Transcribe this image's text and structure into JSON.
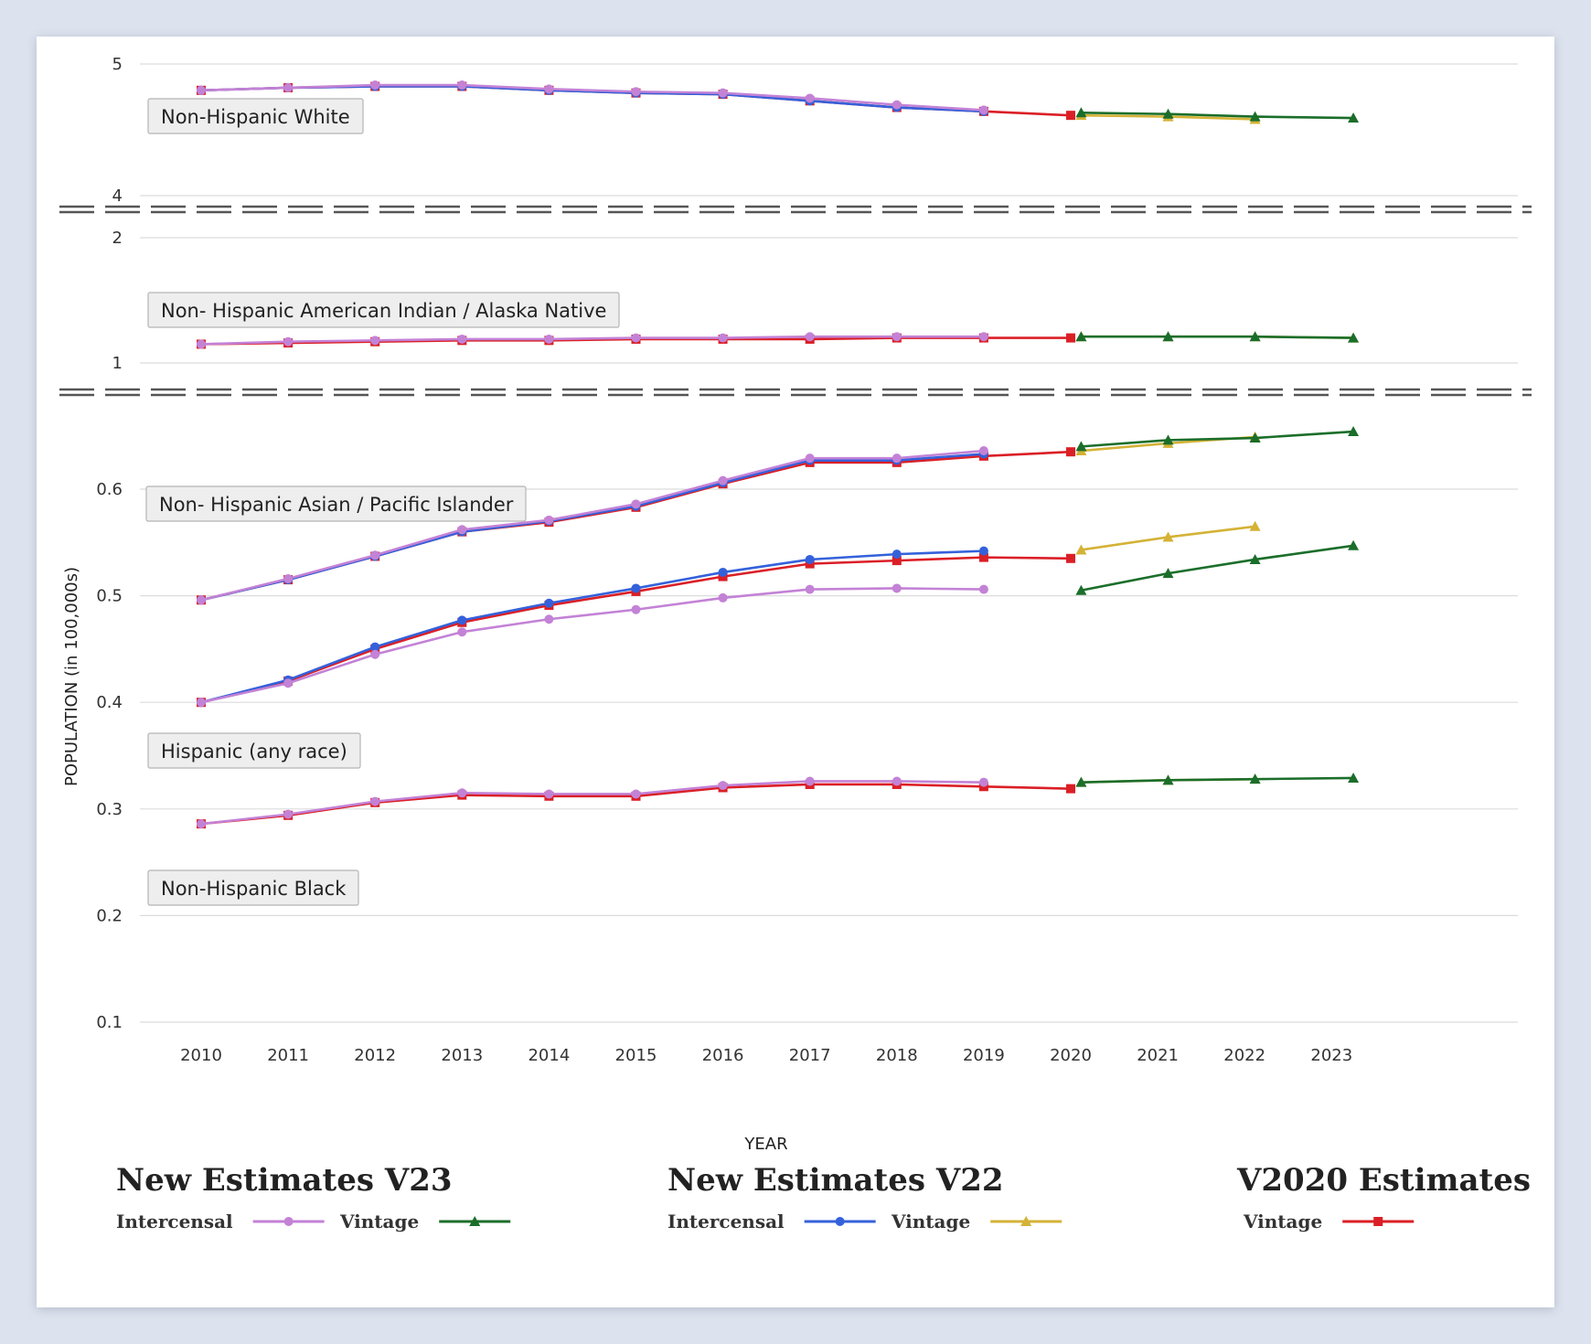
{
  "chart_data": {
    "type": "line",
    "ylabel": "POPULATION (in 100,000s)",
    "xlabel": "YEAR",
    "grid": true,
    "x_ticks": [
      2010,
      2011,
      2012,
      2013,
      2014,
      2015,
      2016,
      2017,
      2018,
      2019,
      2020,
      2021,
      2022,
      2023
    ],
    "axis_breaks": true,
    "y_segments": [
      {
        "ylim": [
          4,
          5
        ],
        "ticks": [
          4,
          5
        ]
      },
      {
        "ylim": [
          1,
          2
        ],
        "ticks": [
          1,
          2
        ]
      },
      {
        "ylim": [
          0.1,
          0.7
        ],
        "ticks": [
          0.1,
          0.2,
          0.3,
          0.4,
          0.5,
          0.6
        ]
      }
    ],
    "group_labels": [
      "Non-Hispanic White",
      "Non- Hispanic American Indian / Alaska Native",
      "Non- Hispanic Asian / Pacific Islander",
      "Hispanic (any race)",
      "Non-Hispanic Black"
    ],
    "legend": [
      {
        "title": "New Estimates V23",
        "entries": [
          {
            "label": "Intercensal",
            "series": "v23_intercensal"
          },
          {
            "label": "Vintage",
            "series": "v23_vintage"
          }
        ]
      },
      {
        "title": "New Estimates V22",
        "entries": [
          {
            "label": "Intercensal",
            "series": "v22_intercensal"
          },
          {
            "label": "Vintage",
            "series": "v22_vintage"
          }
        ]
      },
      {
        "title": "V2020 Estimates",
        "entries": [
          {
            "label": "Vintage",
            "series": "v2020_vintage"
          }
        ]
      }
    ],
    "series_styles": {
      "v23_intercensal": {
        "color": "#c382d6",
        "marker": "circle"
      },
      "v23_vintage": {
        "color": "#1b6e2a",
        "marker": "triangle"
      },
      "v22_intercensal": {
        "color": "#3461db",
        "marker": "circle"
      },
      "v22_vintage": {
        "color": "#d4b236",
        "marker": "triangle"
      },
      "v2020_vintage": {
        "color": "#db1f26",
        "marker": "square"
      }
    },
    "series": [
      {
        "group": "Non-Hispanic White",
        "style": "v2020_vintage",
        "x": [
          2010,
          2011,
          2012,
          2013,
          2014,
          2015,
          2016,
          2017,
          2018,
          2019,
          2020
        ],
        "values": [
          4.8,
          4.82,
          4.83,
          4.83,
          4.8,
          4.78,
          4.77,
          4.72,
          4.67,
          4.64,
          4.61
        ]
      },
      {
        "group": "Non-Hispanic White",
        "style": "v22_intercensal",
        "x": [
          2010,
          2011,
          2012,
          2013,
          2014,
          2015,
          2016,
          2017,
          2018,
          2019
        ],
        "values": [
          4.8,
          4.82,
          4.83,
          4.83,
          4.8,
          4.78,
          4.77,
          4.72,
          4.67,
          4.64
        ]
      },
      {
        "group": "Non-Hispanic White",
        "style": "v23_intercensal",
        "x": [
          2010,
          2011,
          2012,
          2013,
          2014,
          2015,
          2016,
          2017,
          2018,
          2019
        ],
        "values": [
          4.8,
          4.82,
          4.84,
          4.84,
          4.81,
          4.79,
          4.78,
          4.74,
          4.69,
          4.65
        ]
      },
      {
        "group": "Non-Hispanic White",
        "style": "v22_vintage",
        "x": [
          2020.12,
          2021.12,
          2022.12
        ],
        "values": [
          4.61,
          4.6,
          4.58
        ]
      },
      {
        "group": "Non-Hispanic White",
        "style": "v23_vintage",
        "x": [
          2020.12,
          2021.12,
          2022.12,
          2023.25
        ],
        "values": [
          4.63,
          4.62,
          4.6,
          4.59
        ]
      },
      {
        "group": "Non- Hispanic American Indian / Alaska Native",
        "style": "v2020_vintage",
        "x": [
          2010,
          2011,
          2012,
          2013,
          2014,
          2015,
          2016,
          2017,
          2018,
          2019,
          2020
        ],
        "values": [
          1.15,
          1.16,
          1.17,
          1.18,
          1.18,
          1.19,
          1.19,
          1.19,
          1.2,
          1.2,
          1.2
        ]
      },
      {
        "group": "Non- Hispanic American Indian / Alaska Native",
        "style": "v23_intercensal",
        "x": [
          2010,
          2011,
          2012,
          2013,
          2014,
          2015,
          2016,
          2017,
          2018,
          2019
        ],
        "values": [
          1.15,
          1.17,
          1.18,
          1.19,
          1.19,
          1.2,
          1.2,
          1.21,
          1.21,
          1.21
        ]
      },
      {
        "group": "Non- Hispanic American Indian / Alaska Native",
        "style": "v22_vintage",
        "x": [
          2020.12,
          2021.12,
          2022.12,
          2023.25
        ],
        "values": [
          1.21,
          1.21,
          1.21,
          1.2
        ]
      },
      {
        "group": "Non- Hispanic American Indian / Alaska Native",
        "style": "v23_vintage",
        "x": [
          2020.12,
          2021.12,
          2022.12,
          2023.25
        ],
        "values": [
          1.21,
          1.21,
          1.21,
          1.2
        ]
      },
      {
        "group": "Non- Hispanic Asian / Pacific Islander",
        "style": "v2020_vintage",
        "x": [
          2010,
          2011,
          2012,
          2013,
          2014,
          2015,
          2016,
          2017,
          2018,
          2019,
          2020
        ],
        "values": [
          0.496,
          0.515,
          0.537,
          0.56,
          0.569,
          0.583,
          0.605,
          0.625,
          0.625,
          0.631,
          0.635
        ]
      },
      {
        "group": "Non- Hispanic Asian / Pacific Islander",
        "style": "v22_intercensal",
        "x": [
          2010,
          2011,
          2012,
          2013,
          2014,
          2015,
          2016,
          2017,
          2018,
          2019
        ],
        "values": [
          0.496,
          0.515,
          0.537,
          0.56,
          0.57,
          0.584,
          0.606,
          0.627,
          0.627,
          0.633
        ]
      },
      {
        "group": "Non- Hispanic Asian / Pacific Islander",
        "style": "v23_intercensal",
        "x": [
          2010,
          2011,
          2012,
          2013,
          2014,
          2015,
          2016,
          2017,
          2018,
          2019
        ],
        "values": [
          0.496,
          0.516,
          0.538,
          0.562,
          0.571,
          0.586,
          0.608,
          0.629,
          0.629,
          0.636
        ]
      },
      {
        "group": "Non- Hispanic Asian / Pacific Islander",
        "style": "v22_vintage",
        "x": [
          2020.12,
          2021.12,
          2022.12
        ],
        "values": [
          0.636,
          0.643,
          0.649
        ]
      },
      {
        "group": "Non- Hispanic Asian / Pacific Islander",
        "style": "v23_vintage",
        "x": [
          2020.12,
          2021.12,
          2022.12,
          2023.25
        ],
        "values": [
          0.64,
          0.646,
          0.648,
          0.654
        ]
      },
      {
        "group": "Hispanic (any race)",
        "style": "v2020_vintage",
        "x": [
          2010,
          2011,
          2012,
          2013,
          2014,
          2015,
          2016,
          2017,
          2018,
          2019,
          2020
        ],
        "values": [
          0.4,
          0.42,
          0.45,
          0.475,
          0.491,
          0.504,
          0.518,
          0.53,
          0.533,
          0.536,
          0.535
        ]
      },
      {
        "group": "Hispanic (any race)",
        "style": "v22_intercensal",
        "x": [
          2010,
          2011,
          2012,
          2013,
          2014,
          2015,
          2016,
          2017,
          2018,
          2019
        ],
        "values": [
          0.4,
          0.421,
          0.452,
          0.477,
          0.493,
          0.507,
          0.522,
          0.534,
          0.539,
          0.542
        ]
      },
      {
        "group": "Hispanic (any race)",
        "style": "v23_intercensal",
        "x": [
          2010,
          2011,
          2012,
          2013,
          2014,
          2015,
          2016,
          2017,
          2018,
          2019
        ],
        "values": [
          0.4,
          0.418,
          0.445,
          0.466,
          0.478,
          0.487,
          0.498,
          0.506,
          0.507,
          0.506
        ]
      },
      {
        "group": "Hispanic (any race)",
        "style": "v22_vintage",
        "x": [
          2020.12,
          2021.12,
          2022.12
        ],
        "values": [
          0.543,
          0.555,
          0.565
        ]
      },
      {
        "group": "Hispanic (any race)",
        "style": "v23_vintage",
        "x": [
          2020.12,
          2021.12,
          2022.12,
          2023.25
        ],
        "values": [
          0.505,
          0.521,
          0.534,
          0.547
        ]
      },
      {
        "group": "Non-Hispanic Black",
        "style": "v2020_vintage",
        "x": [
          2010,
          2011,
          2012,
          2013,
          2014,
          2015,
          2016,
          2017,
          2018,
          2019,
          2020
        ],
        "values": [
          0.286,
          0.294,
          0.306,
          0.313,
          0.312,
          0.312,
          0.32,
          0.323,
          0.323,
          0.321,
          0.319
        ]
      },
      {
        "group": "Non-Hispanic Black",
        "style": "v23_intercensal",
        "x": [
          2010,
          2011,
          2012,
          2013,
          2014,
          2015,
          2016,
          2017,
          2018,
          2019
        ],
        "values": [
          0.286,
          0.295,
          0.307,
          0.315,
          0.314,
          0.314,
          0.322,
          0.326,
          0.326,
          0.325
        ]
      },
      {
        "group": "Non-Hispanic Black",
        "style": "v22_vintage",
        "x": [
          2020.12,
          2021.12,
          2022.12
        ],
        "values": [
          0.325,
          0.327,
          0.328
        ]
      },
      {
        "group": "Non-Hispanic Black",
        "style": "v23_vintage",
        "x": [
          2020.12,
          2021.12,
          2022.12,
          2023.25
        ],
        "values": [
          0.325,
          0.327,
          0.328,
          0.329
        ]
      }
    ]
  }
}
